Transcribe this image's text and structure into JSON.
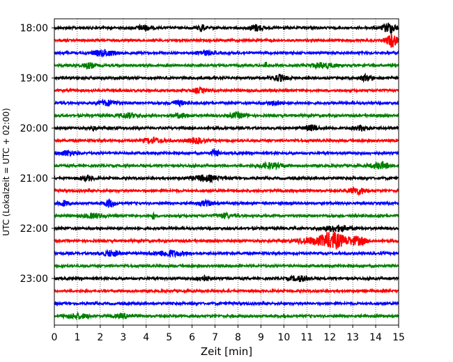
{
  "chart_data": {
    "type": "line",
    "xlabel": "Zeit  [min]",
    "ylabel": "UTC (Lokalzeit = UTC + 02:00)",
    "xlim": [
      0,
      15
    ],
    "x_ticks": [
      "0",
      "1",
      "2",
      "3",
      "4",
      "5",
      "6",
      "7",
      "8",
      "9",
      "10",
      "11",
      "12",
      "13",
      "14",
      "15"
    ],
    "y_ticks": [
      {
        "label": "18:00",
        "trace": 0
      },
      {
        "label": "19:00",
        "trace": 4
      },
      {
        "label": "20:00",
        "trace": 8
      },
      {
        "label": "21:00",
        "trace": 12
      },
      {
        "label": "22:00",
        "trace": 16
      },
      {
        "label": "23:00",
        "trace": 20
      }
    ],
    "grid": "vertical dotted",
    "color_cycle": [
      "#000000",
      "#ff0000",
      "#0000ff",
      "#008000"
    ],
    "traces": [
      {
        "start": "18:00",
        "bursts": [
          [
            3.9,
            0.3,
            2
          ],
          [
            6.4,
            0.15,
            3
          ],
          [
            8.8,
            0.3,
            2.5
          ],
          [
            14.6,
            0.3,
            4
          ]
        ]
      },
      {
        "start": "18:15",
        "bursts": [
          [
            14.7,
            0.25,
            5
          ]
        ]
      },
      {
        "start": "18:30",
        "bursts": [
          [
            2.2,
            0.5,
            2.2
          ],
          [
            6.5,
            0.3,
            1.8
          ]
        ]
      },
      {
        "start": "18:45",
        "bursts": [
          [
            1.5,
            0.3,
            2
          ],
          [
            9.2,
            0.05,
            4
          ],
          [
            11.7,
            0.5,
            2
          ]
        ]
      },
      {
        "start": "19:00",
        "bursts": [
          [
            9.8,
            0.3,
            2.5
          ],
          [
            13.6,
            0.3,
            2
          ]
        ]
      },
      {
        "start": "19:15",
        "bursts": [
          [
            6.3,
            0.3,
            1.6
          ]
        ]
      },
      {
        "start": "19:30",
        "bursts": [
          [
            2.3,
            0.4,
            2
          ],
          [
            5.4,
            0.3,
            1.8
          ],
          [
            9.6,
            0.3,
            1.6
          ]
        ]
      },
      {
        "start": "19:45",
        "bursts": [
          [
            3.2,
            0.4,
            1.8
          ],
          [
            5.5,
            0.4,
            1.6
          ],
          [
            8.0,
            0.4,
            1.8
          ]
        ]
      },
      {
        "start": "20:00",
        "bursts": [
          [
            1.7,
            0.1,
            2
          ],
          [
            11.2,
            0.3,
            2
          ],
          [
            13.4,
            0.3,
            2
          ]
        ]
      },
      {
        "start": "20:15",
        "bursts": [
          [
            4.3,
            0.4,
            2
          ],
          [
            6.2,
            0.4,
            2
          ]
        ]
      },
      {
        "start": "20:30",
        "bursts": [
          [
            0.6,
            0.4,
            2
          ],
          [
            7.0,
            0.15,
            3
          ]
        ]
      },
      {
        "start": "20:45",
        "bursts": [
          [
            9.4,
            0.5,
            2
          ],
          [
            14.2,
            0.4,
            2.5
          ]
        ]
      },
      {
        "start": "21:00",
        "bursts": [
          [
            1.4,
            0.3,
            1.8
          ],
          [
            6.6,
            0.6,
            2.2
          ]
        ]
      },
      {
        "start": "21:15",
        "bursts": [
          [
            13.2,
            0.4,
            2.5
          ]
        ]
      },
      {
        "start": "21:30",
        "bursts": [
          [
            0.4,
            0.2,
            2
          ],
          [
            2.4,
            0.2,
            3
          ],
          [
            6.6,
            0.3,
            1.8
          ]
        ]
      },
      {
        "start": "21:45",
        "bursts": [
          [
            1.7,
            0.4,
            1.8
          ],
          [
            4.3,
            0.05,
            4
          ],
          [
            7.4,
            0.3,
            1.8
          ]
        ]
      },
      {
        "start": "22:00",
        "bursts": [
          [
            12.3,
            0.6,
            2.2
          ]
        ]
      },
      {
        "start": "22:15",
        "bursts": [
          [
            12.1,
            0.6,
            6.5
          ],
          [
            13.2,
            0.4,
            3
          ],
          [
            11.0,
            0.5,
            2
          ]
        ]
      },
      {
        "start": "22:30",
        "bursts": [
          [
            2.5,
            0.4,
            2
          ],
          [
            5.0,
            0.6,
            2.2
          ]
        ]
      },
      {
        "start": "22:45",
        "bursts": []
      },
      {
        "start": "23:00",
        "bursts": [
          [
            6.5,
            0.3,
            1.8
          ],
          [
            10.7,
            0.4,
            2
          ]
        ]
      },
      {
        "start": "23:15",
        "bursts": []
      },
      {
        "start": "23:30",
        "bursts": []
      },
      {
        "start": "23:45",
        "bursts": [
          [
            1.0,
            0.5,
            1.8
          ],
          [
            3.1,
            0.4,
            1.6
          ]
        ]
      }
    ]
  }
}
